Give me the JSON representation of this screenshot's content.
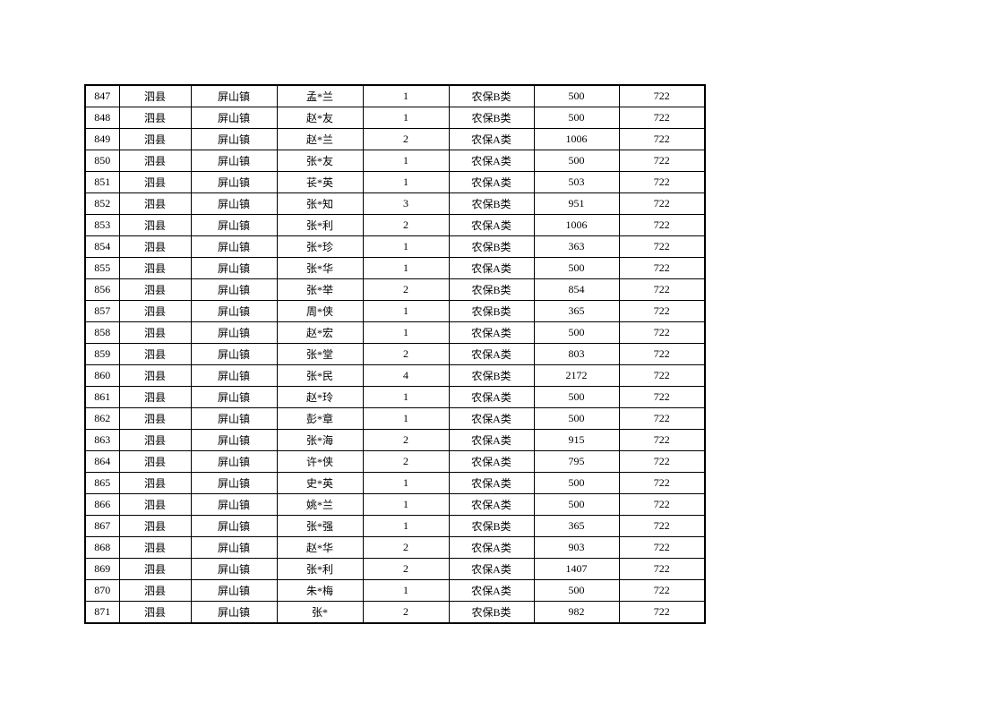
{
  "table": {
    "rows": [
      [
        "847",
        "泗县",
        "屏山镇",
        "孟*兰",
        "1",
        "农保B类",
        "500",
        "722"
      ],
      [
        "848",
        "泗县",
        "屏山镇",
        "赵*友",
        "1",
        "农保B类",
        "500",
        "722"
      ],
      [
        "849",
        "泗县",
        "屏山镇",
        "赵*兰",
        "2",
        "农保A类",
        "1006",
        "722"
      ],
      [
        "850",
        "泗县",
        "屏山镇",
        "张*友",
        "1",
        "农保A类",
        "500",
        "722"
      ],
      [
        "851",
        "泗县",
        "屏山镇",
        "苌*英",
        "1",
        "农保A类",
        "503",
        "722"
      ],
      [
        "852",
        "泗县",
        "屏山镇",
        "张*知",
        "3",
        "农保B类",
        "951",
        "722"
      ],
      [
        "853",
        "泗县",
        "屏山镇",
        "张*利",
        "2",
        "农保A类",
        "1006",
        "722"
      ],
      [
        "854",
        "泗县",
        "屏山镇",
        "张*珍",
        "1",
        "农保B类",
        "363",
        "722"
      ],
      [
        "855",
        "泗县",
        "屏山镇",
        "张*华",
        "1",
        "农保A类",
        "500",
        "722"
      ],
      [
        "856",
        "泗县",
        "屏山镇",
        "张*举",
        "2",
        "农保B类",
        "854",
        "722"
      ],
      [
        "857",
        "泗县",
        "屏山镇",
        "周*侠",
        "1",
        "农保B类",
        "365",
        "722"
      ],
      [
        "858",
        "泗县",
        "屏山镇",
        "赵*宏",
        "1",
        "农保A类",
        "500",
        "722"
      ],
      [
        "859",
        "泗县",
        "屏山镇",
        "张*堂",
        "2",
        "农保A类",
        "803",
        "722"
      ],
      [
        "860",
        "泗县",
        "屏山镇",
        "张*民",
        "4",
        "农保B类",
        "2172",
        "722"
      ],
      [
        "861",
        "泗县",
        "屏山镇",
        "赵*玲",
        "1",
        "农保A类",
        "500",
        "722"
      ],
      [
        "862",
        "泗县",
        "屏山镇",
        "彭*章",
        "1",
        "农保A类",
        "500",
        "722"
      ],
      [
        "863",
        "泗县",
        "屏山镇",
        "张*海",
        "2",
        "农保A类",
        "915",
        "722"
      ],
      [
        "864",
        "泗县",
        "屏山镇",
        "许*侠",
        "2",
        "农保A类",
        "795",
        "722"
      ],
      [
        "865",
        "泗县",
        "屏山镇",
        "史*英",
        "1",
        "农保A类",
        "500",
        "722"
      ],
      [
        "866",
        "泗县",
        "屏山镇",
        "姚*兰",
        "1",
        "农保A类",
        "500",
        "722"
      ],
      [
        "867",
        "泗县",
        "屏山镇",
        "张*强",
        "1",
        "农保B类",
        "365",
        "722"
      ],
      [
        "868",
        "泗县",
        "屏山镇",
        "赵*华",
        "2",
        "农保A类",
        "903",
        "722"
      ],
      [
        "869",
        "泗县",
        "屏山镇",
        "张*利",
        "2",
        "农保A类",
        "1407",
        "722"
      ],
      [
        "870",
        "泗县",
        "屏山镇",
        "朱*梅",
        "1",
        "农保A类",
        "500",
        "722"
      ],
      [
        "871",
        "泗县",
        "屏山镇",
        "张*",
        "2",
        "农保B类",
        "982",
        "722"
      ]
    ]
  }
}
